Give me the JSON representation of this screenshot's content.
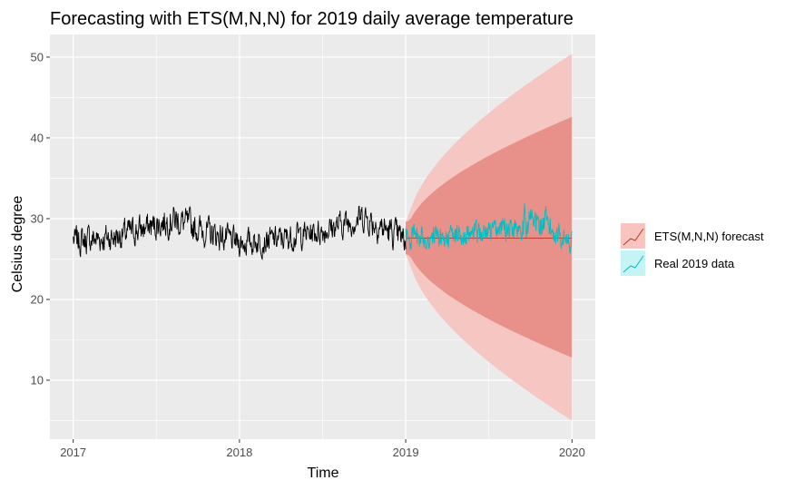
{
  "chart_data": {
    "type": "line",
    "title": "Forecasting with ETS(M,N,N) for 2019 daily average temperature",
    "xlabel": "Time",
    "ylabel": "Celsius degree",
    "xlim": [
      2016.86,
      2020.14
    ],
    "ylim": [
      2.7,
      52.8
    ],
    "x_ticks": [
      2017,
      2018,
      2019,
      2020
    ],
    "x_tick_labels": [
      "2017",
      "2018",
      "2019",
      "2020"
    ],
    "y_ticks": [
      10,
      20,
      30,
      40,
      50
    ],
    "y_tick_labels": [
      "10",
      "20",
      "30",
      "40",
      "50"
    ],
    "grid": true,
    "legend_position": "right",
    "colors": {
      "panel_background": "#ebebeb",
      "grid_major": "#ffffff",
      "history_line": "#000000",
      "forecast_line": "#c0392b",
      "pi80_band": "#e8918a",
      "pi95_band": "#f5c6c2",
      "real_2019_line": "#00bfc4",
      "legend_forecast_key": "#f8c4c0",
      "legend_real_key": "#c6f4f5"
    },
    "history": {
      "start": 2017,
      "end": 2019,
      "points_per_year": 365,
      "envelope_x": [
        2017.0,
        2017.25,
        2017.5,
        2017.6,
        2017.75,
        2018.0,
        2018.25,
        2018.5,
        2018.75,
        2018.85,
        2019.0
      ],
      "envelope_low": [
        24.5,
        25.0,
        26.5,
        27.0,
        26.0,
        24.5,
        25.0,
        26.0,
        27.5,
        26.0,
        24.5
      ],
      "envelope_high": [
        30.0,
        30.5,
        32.0,
        33.0,
        31.5,
        29.5,
        30.0,
        31.0,
        33.0,
        32.0,
        30.0
      ]
    },
    "forecast": {
      "start": 2019,
      "end": 2020,
      "point": 27.6,
      "pi80_x": [
        2019.0,
        2019.25,
        2019.5,
        2019.75,
        2020.0
      ],
      "pi80_low": [
        27.6,
        21.5,
        18.0,
        15.0,
        12.8
      ],
      "pi80_high": [
        27.6,
        34.8,
        38.2,
        40.8,
        42.6
      ],
      "pi95_x": [
        2019.0,
        2019.25,
        2019.5,
        2019.75,
        2020.0
      ],
      "pi95_low": [
        27.6,
        18.0,
        12.5,
        8.5,
        5.0
      ],
      "pi95_high": [
        27.6,
        38.2,
        43.5,
        47.5,
        50.4
      ]
    },
    "real_2019": {
      "start": 2019,
      "end": 2020,
      "envelope_x": [
        2019.0,
        2019.25,
        2019.5,
        2019.6,
        2019.75,
        2019.85,
        2020.0
      ],
      "envelope_low": [
        25.0,
        25.5,
        26.0,
        26.5,
        26.5,
        26.0,
        25.0
      ],
      "envelope_high": [
        30.0,
        30.0,
        30.5,
        31.5,
        33.0,
        32.0,
        29.5
      ]
    },
    "legend": {
      "entries": [
        {
          "label": "ETS(M,N,N) forecast",
          "color": "#c0392b"
        },
        {
          "label": "Real 2019 data",
          "color": "#00bfc4"
        }
      ]
    }
  }
}
